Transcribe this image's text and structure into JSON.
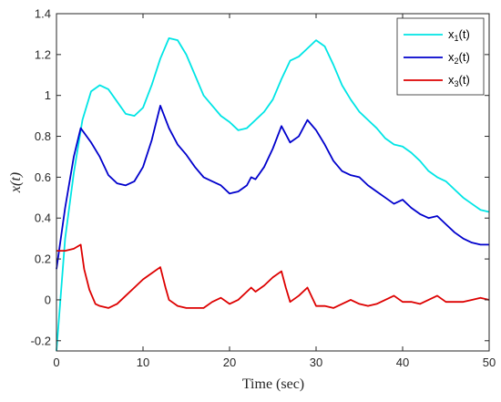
{
  "chart_data": {
    "type": "line",
    "title": "",
    "xlabel": "Time (sec)",
    "ylabel": "x(t)",
    "xlim": [
      0,
      50
    ],
    "ylim": [
      -0.25,
      1.4
    ],
    "x_ticks": [
      0,
      10,
      20,
      30,
      40,
      50
    ],
    "x_tick_labels": [
      "0",
      "10",
      "20",
      "30",
      "40",
      "50"
    ],
    "y_ticks": [
      -0.2,
      0,
      0.2,
      0.4,
      0.6,
      0.8,
      1,
      1.2,
      1.4
    ],
    "y_tick_labels": [
      "-0.2",
      "0",
      "0.2",
      "0.4",
      "0.6",
      "0.8",
      "1",
      "1.2",
      "1.4"
    ],
    "grid": false,
    "legend_position": "top-right",
    "series": [
      {
        "name": "x1(t)",
        "legend_base": "x",
        "legend_sub": "1",
        "legend_tail": "(t)",
        "color": "#00e5e5",
        "points": [
          [
            0,
            -0.25
          ],
          [
            1,
            0.3
          ],
          [
            2,
            0.62
          ],
          [
            3,
            0.88
          ],
          [
            4,
            1.02
          ],
          [
            5,
            1.05
          ],
          [
            6,
            1.03
          ],
          [
            7,
            0.97
          ],
          [
            8,
            0.91
          ],
          [
            9,
            0.9
          ],
          [
            10,
            0.94
          ],
          [
            11,
            1.05
          ],
          [
            12,
            1.18
          ],
          [
            13,
            1.28
          ],
          [
            14,
            1.27
          ],
          [
            15,
            1.2
          ],
          [
            16,
            1.1
          ],
          [
            17,
            1.0
          ],
          [
            18,
            0.95
          ],
          [
            19,
            0.9
          ],
          [
            20,
            0.87
          ],
          [
            21,
            0.83
          ],
          [
            22,
            0.84
          ],
          [
            23,
            0.88
          ],
          [
            24,
            0.92
          ],
          [
            25,
            0.98
          ],
          [
            26,
            1.08
          ],
          [
            27,
            1.17
          ],
          [
            28,
            1.19
          ],
          [
            29,
            1.23
          ],
          [
            30,
            1.27
          ],
          [
            31,
            1.24
          ],
          [
            32,
            1.15
          ],
          [
            33,
            1.05
          ],
          [
            34,
            0.98
          ],
          [
            35,
            0.92
          ],
          [
            36,
            0.88
          ],
          [
            37,
            0.84
          ],
          [
            38,
            0.79
          ],
          [
            39,
            0.76
          ],
          [
            40,
            0.75
          ],
          [
            41,
            0.72
          ],
          [
            42,
            0.68
          ],
          [
            43,
            0.63
          ],
          [
            44,
            0.6
          ],
          [
            45,
            0.58
          ],
          [
            46,
            0.54
          ],
          [
            47,
            0.5
          ],
          [
            48,
            0.47
          ],
          [
            49,
            0.44
          ],
          [
            50,
            0.43
          ]
        ]
      },
      {
        "name": "x2(t)",
        "legend_base": "x",
        "legend_sub": "2",
        "legend_tail": "(t)",
        "color": "#0000cc",
        "points": [
          [
            0,
            0.15
          ],
          [
            1,
            0.45
          ],
          [
            2,
            0.7
          ],
          [
            2.8,
            0.84
          ],
          [
            4,
            0.77
          ],
          [
            5,
            0.7
          ],
          [
            6,
            0.61
          ],
          [
            7,
            0.57
          ],
          [
            8,
            0.56
          ],
          [
            9,
            0.58
          ],
          [
            10,
            0.65
          ],
          [
            11,
            0.78
          ],
          [
            12,
            0.95
          ],
          [
            13,
            0.84
          ],
          [
            14,
            0.76
          ],
          [
            15,
            0.71
          ],
          [
            16,
            0.65
          ],
          [
            17,
            0.6
          ],
          [
            18,
            0.58
          ],
          [
            19,
            0.56
          ],
          [
            20,
            0.52
          ],
          [
            21,
            0.53
          ],
          [
            22,
            0.56
          ],
          [
            22.5,
            0.6
          ],
          [
            23,
            0.59
          ],
          [
            24,
            0.65
          ],
          [
            25,
            0.74
          ],
          [
            26,
            0.85
          ],
          [
            27,
            0.77
          ],
          [
            28,
            0.8
          ],
          [
            29,
            0.88
          ],
          [
            30,
            0.83
          ],
          [
            31,
            0.76
          ],
          [
            32,
            0.68
          ],
          [
            33,
            0.63
          ],
          [
            34,
            0.61
          ],
          [
            35,
            0.6
          ],
          [
            36,
            0.56
          ],
          [
            37,
            0.53
          ],
          [
            38,
            0.5
          ],
          [
            39,
            0.47
          ],
          [
            40,
            0.49
          ],
          [
            41,
            0.45
          ],
          [
            42,
            0.42
          ],
          [
            43,
            0.4
          ],
          [
            44,
            0.41
          ],
          [
            45,
            0.37
          ],
          [
            46,
            0.33
          ],
          [
            47,
            0.3
          ],
          [
            48,
            0.28
          ],
          [
            49,
            0.27
          ],
          [
            50,
            0.27
          ]
        ]
      },
      {
        "name": "x3(t)",
        "legend_base": "x",
        "legend_sub": "3",
        "legend_tail": "(t)",
        "color": "#dd0000",
        "points": [
          [
            0,
            0.24
          ],
          [
            1,
            0.24
          ],
          [
            2,
            0.25
          ],
          [
            2.8,
            0.27
          ],
          [
            3.2,
            0.15
          ],
          [
            3.8,
            0.05
          ],
          [
            4.5,
            -0.02
          ],
          [
            5,
            -0.03
          ],
          [
            6,
            -0.04
          ],
          [
            7,
            -0.02
          ],
          [
            8,
            0.02
          ],
          [
            9,
            0.06
          ],
          [
            10,
            0.1
          ],
          [
            11,
            0.13
          ],
          [
            12,
            0.16
          ],
          [
            12.6,
            0.06
          ],
          [
            13,
            0.0
          ],
          [
            14,
            -0.03
          ],
          [
            15,
            -0.04
          ],
          [
            16,
            -0.04
          ],
          [
            17,
            -0.04
          ],
          [
            18,
            -0.01
          ],
          [
            19,
            0.01
          ],
          [
            20,
            -0.02
          ],
          [
            21,
            0.0
          ],
          [
            22,
            0.04
          ],
          [
            22.5,
            0.06
          ],
          [
            23,
            0.04
          ],
          [
            24,
            0.07
          ],
          [
            25,
            0.11
          ],
          [
            26,
            0.14
          ],
          [
            26.5,
            0.06
          ],
          [
            27,
            -0.01
          ],
          [
            28,
            0.02
          ],
          [
            29,
            0.06
          ],
          [
            30,
            -0.03
          ],
          [
            31,
            -0.03
          ],
          [
            32,
            -0.04
          ],
          [
            33,
            -0.02
          ],
          [
            34,
            0.0
          ],
          [
            35,
            -0.02
          ],
          [
            36,
            -0.03
          ],
          [
            37,
            -0.02
          ],
          [
            38,
            0.0
          ],
          [
            39,
            0.02
          ],
          [
            40,
            -0.01
          ],
          [
            41,
            -0.01
          ],
          [
            42,
            -0.02
          ],
          [
            43,
            0.0
          ],
          [
            44,
            0.02
          ],
          [
            45,
            -0.01
          ],
          [
            46,
            -0.01
          ],
          [
            47,
            -0.01
          ],
          [
            48,
            0.0
          ],
          [
            49,
            0.01
          ],
          [
            50,
            0.0
          ]
        ]
      }
    ]
  }
}
